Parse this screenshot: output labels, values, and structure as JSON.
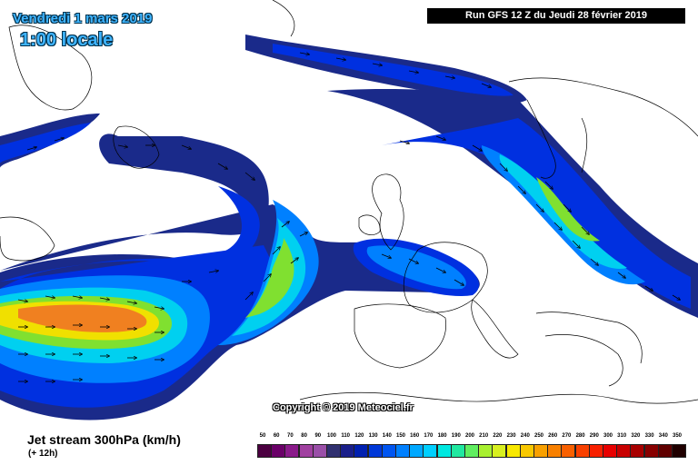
{
  "header": {
    "date": "Vendredi 1 mars 2019",
    "time": "1:00 locale",
    "run": "Run GFS 12 Z du Jeudi 28 février 2019"
  },
  "copyright": "Copyright © 2019 Meteociel.fr",
  "footer": {
    "product": "Jet stream 300hPa (km/h)",
    "lead": "(+ 12h)"
  },
  "legend": {
    "values": [
      "50",
      "60",
      "70",
      "80",
      "90",
      "100",
      "110",
      "120",
      "130",
      "140",
      "150",
      "160",
      "170",
      "180",
      "190",
      "200",
      "210",
      "220",
      "230",
      "240",
      "250",
      "260",
      "270",
      "280",
      "290",
      "300",
      "310",
      "320",
      "330",
      "340",
      "350"
    ],
    "colors": [
      "#4b0040",
      "#6a0068",
      "#8a1a8a",
      "#a040a0",
      "#9a4fa8",
      "#303070",
      "#1a1f8a",
      "#0020b0",
      "#0038d8",
      "#0055f0",
      "#0080ff",
      "#00a8ff",
      "#00cfff",
      "#00e8e0",
      "#20e8a0",
      "#60ee60",
      "#a8f030",
      "#d8f020",
      "#f8e800",
      "#f8c800",
      "#f8a000",
      "#f88000",
      "#f86000",
      "#f84000",
      "#f82000",
      "#e80000",
      "#c80000",
      "#a80000",
      "#880000",
      "#600000",
      "#200000"
    ]
  },
  "colors": {
    "jet_outer": "#1a2a8a",
    "jet_blue": "#0030e0",
    "jet_mid": "#0080ff",
    "jet_cyan": "#00d0f0",
    "jet_green": "#80e030",
    "jet_yellow": "#f0e000",
    "jet_orange": "#f08020"
  }
}
